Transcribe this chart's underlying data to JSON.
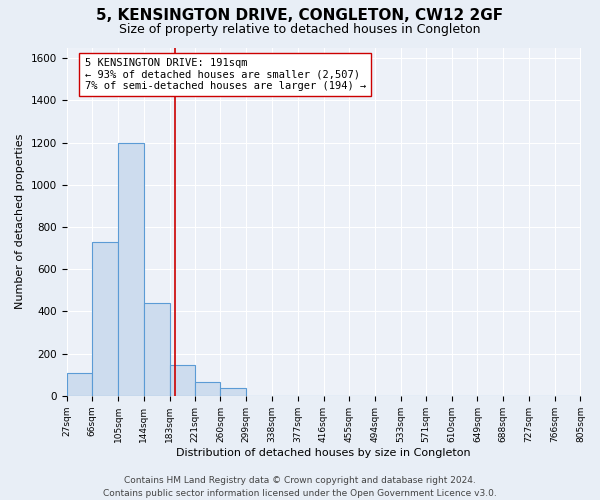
{
  "title": "5, KENSINGTON DRIVE, CONGLETON, CW12 2GF",
  "subtitle": "Size of property relative to detached houses in Congleton",
  "xlabel": "Distribution of detached houses by size in Congleton",
  "ylabel": "Number of detached properties",
  "bar_edges": [
    27,
    66,
    105,
    144,
    183,
    221,
    260,
    299,
    338,
    377,
    416,
    455,
    494,
    533,
    571,
    610,
    649,
    688,
    727,
    766,
    805
  ],
  "bar_heights": [
    110,
    730,
    1200,
    440,
    145,
    65,
    35,
    0,
    0,
    0,
    0,
    0,
    0,
    0,
    0,
    0,
    0,
    0,
    0,
    0
  ],
  "bar_color": "#cddcee",
  "bar_edge_color": "#5b9bd5",
  "bar_linewidth": 0.8,
  "vline_x": 191,
  "vline_color": "#cc0000",
  "vline_linewidth": 1.2,
  "annotation_title": "5 KENSINGTON DRIVE: 191sqm",
  "annotation_line2": "← 93% of detached houses are smaller (2,507)",
  "annotation_line3": "7% of semi-detached houses are larger (194) →",
  "annotation_fontsize": 7.5,
  "annotation_box_color": "white",
  "annotation_box_edgecolor": "#cc0000",
  "ylim": [
    0,
    1650
  ],
  "xlim": [
    27,
    805
  ],
  "tick_labels": [
    "27sqm",
    "66sqm",
    "105sqm",
    "144sqm",
    "183sqm",
    "221sqm",
    "260sqm",
    "299sqm",
    "338sqm",
    "377sqm",
    "416sqm",
    "455sqm",
    "494sqm",
    "533sqm",
    "571sqm",
    "610sqm",
    "649sqm",
    "688sqm",
    "727sqm",
    "766sqm",
    "805sqm"
  ],
  "footer_line1": "Contains HM Land Registry data © Crown copyright and database right 2024.",
  "footer_line2": "Contains public sector information licensed under the Open Government Licence v3.0.",
  "bg_color": "#e8eef6",
  "plot_bg_color": "#edf1f8",
  "grid_color": "#ffffff",
  "title_fontsize": 11,
  "subtitle_fontsize": 9,
  "footer_fontsize": 6.5,
  "ylabel_fontsize": 8,
  "xlabel_fontsize": 8
}
